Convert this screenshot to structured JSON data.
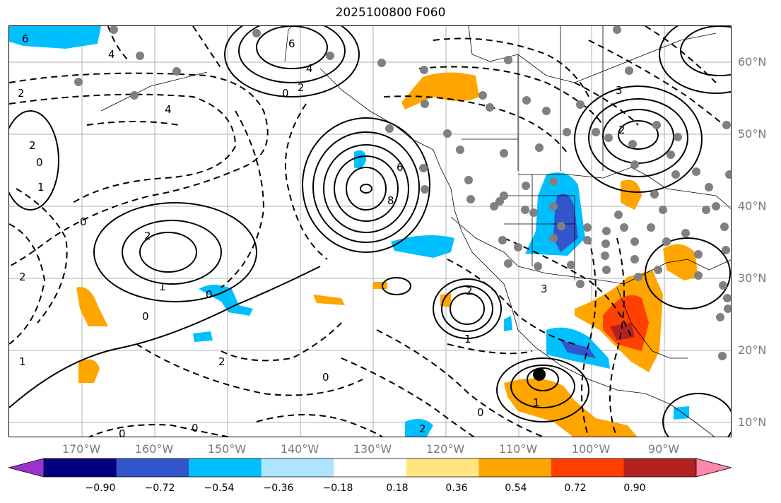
{
  "title": "2025100800 F060",
  "lat_labels": [
    "60°N",
    "50°N",
    "40°N",
    "30°N",
    "20°N",
    "10°N"
  ],
  "lon_labels": [
    "170°W",
    "160°W",
    "150°W",
    "140°W",
    "130°W",
    "120°W",
    "110°W",
    "100°W",
    "90°W"
  ],
  "colorbar": {
    "colors": [
      "#9933cc",
      "#000080",
      "#3355cc",
      "#00bfff",
      "#aee4ff",
      "#ffffff",
      "#ffe680",
      "#ffa500",
      "#ff4000",
      "#b22222",
      "#ff88aa"
    ],
    "tick_labels": [
      "−0.90",
      "−0.72",
      "−0.54",
      "−0.36",
      "−0.18",
      "0.18",
      "0.36",
      "0.54",
      "0.72",
      "0.90"
    ]
  },
  "contour_labels": [
    "6",
    "4",
    "2",
    "0",
    "2",
    "4",
    "6",
    "8",
    "2",
    "1",
    "0",
    "3",
    "2",
    "1",
    "0",
    "6",
    "4",
    "2",
    "0",
    "2",
    "1",
    "0",
    "2",
    "0",
    "1",
    "3",
    "2",
    "0",
    "1",
    "0",
    "2",
    "0"
  ]
}
